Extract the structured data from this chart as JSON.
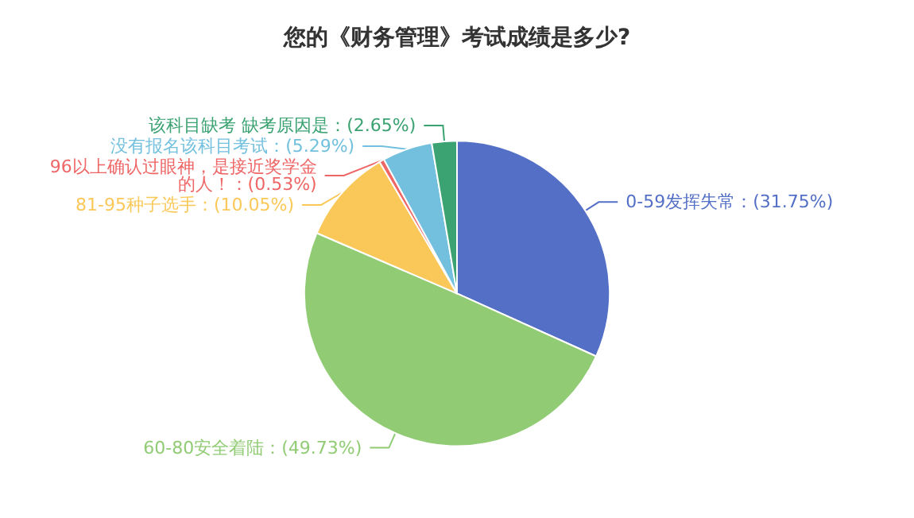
{
  "chart_data": {
    "type": "pie",
    "title": "您的《财务管理》考试成绩是多少?",
    "categories": [
      "0-59发挥失常",
      "60-80安全着陆",
      "81-95种子选手",
      "96以上确认过眼神，是接近奖学金的人！",
      "没有报名该科目考试",
      "该科目缺考 缺考原因是"
    ],
    "values": [
      31.75,
      49.73,
      10.05,
      0.53,
      5.29,
      2.65
    ],
    "colors": [
      "#5470c6",
      "#91cc75",
      "#fac858",
      "#ee6666",
      "#73c0de",
      "#3ba272"
    ],
    "value_labels": [
      "(31.75%)",
      "(49.73%)",
      "(10.05%)",
      "(0.53%)",
      "(5.29%)",
      "(2.65%)"
    ],
    "legend": false
  }
}
